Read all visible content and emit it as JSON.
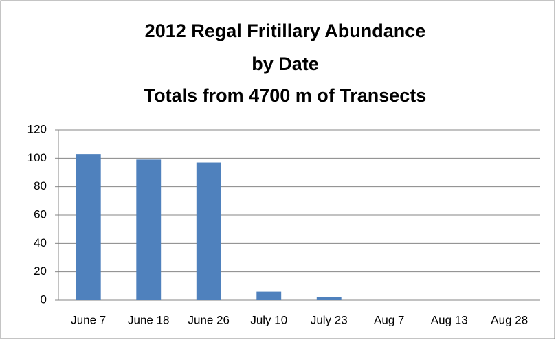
{
  "chart_data": {
    "type": "bar",
    "title": [
      "2012 Regal Fritillary Abundance",
      "by Date",
      "Totals from 4700 m of Transects"
    ],
    "categories": [
      "June 7",
      "June 18",
      "June 26",
      "July 10",
      "July 23",
      "Aug 7",
      "Aug 13",
      "Aug 28"
    ],
    "values": [
      103,
      99,
      97,
      6,
      2,
      0,
      0,
      0
    ],
    "color": "#4f81bd",
    "ylim": [
      0,
      120
    ],
    "yticks": [
      0,
      20,
      40,
      60,
      80,
      100,
      120
    ],
    "grid": true
  }
}
